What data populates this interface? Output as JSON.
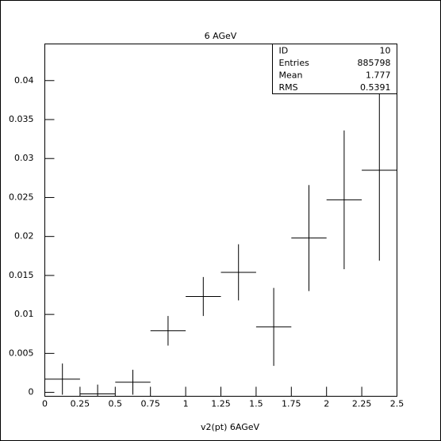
{
  "chart_data": {
    "type": "histogram",
    "title": "6 AGeV",
    "x_label": "v2(pt) 6AGeV",
    "bins": [
      0,
      0.25,
      0.5,
      0.75,
      1,
      1.25,
      1.5,
      1.75,
      2,
      2.25,
      2.5
    ],
    "values": [
      0.0017,
      -0.0002,
      0.0013,
      0.0079,
      0.0123,
      0.0154,
      0.0084,
      0.0198,
      0.0247,
      0.0285
    ],
    "errors": [
      0.002,
      0.0012,
      0.0016,
      0.0019,
      0.0025,
      0.0036,
      0.005,
      0.0068,
      0.0089,
      0.0116
    ],
    "color": "#000000",
    "xlim": [
      0,
      2.5
    ],
    "xticks": [
      0,
      0.25,
      0.5,
      0.75,
      1,
      1.25,
      1.5,
      1.75,
      2,
      2.25,
      2.5
    ],
    "ylim": [
      -0.0005,
      0.0447
    ],
    "yticks": [
      0,
      0.005,
      0.01,
      0.015,
      0.02,
      0.025,
      0.03,
      0.035,
      0.04
    ],
    "stats": [
      {
        "label": "ID",
        "value": 10
      },
      {
        "label": "Entries",
        "value": 885798
      },
      {
        "label": "Mean",
        "value": 1.777
      },
      {
        "label": "RMS",
        "value": 0.5391
      }
    ]
  }
}
